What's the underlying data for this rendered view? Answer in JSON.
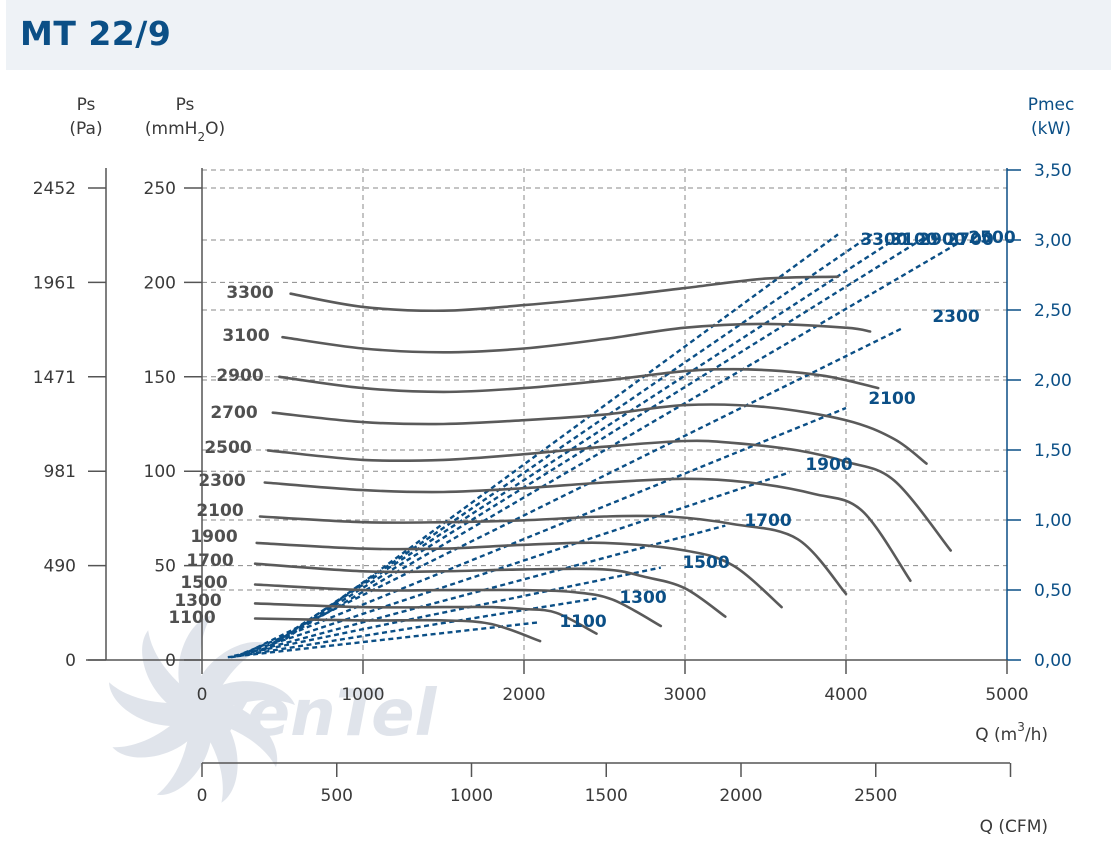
{
  "title": "MT 22/9",
  "logo_text": "venTel",
  "axes": {
    "ps_pa": {
      "label": "Ps",
      "unit": "(Pa)",
      "ticks": [
        "2452",
        "1961",
        "1471",
        "981",
        "490",
        "0"
      ]
    },
    "ps_mm": {
      "label": "Ps",
      "unit_prefix": "(mmH",
      "unit_sub": "2",
      "unit_suffix": "O)",
      "ticks": [
        "250",
        "200",
        "150",
        "100",
        "50",
        "0"
      ]
    },
    "pmec": {
      "label": "Pmec",
      "unit": "(kW)",
      "ticks": [
        "3,50",
        "3,00",
        "2,50",
        "2,00",
        "1,50",
        "1,00",
        "0,50",
        "0,00"
      ]
    },
    "q_m3h": {
      "label_prefix": "Q (m",
      "label_sup": "3",
      "label_suffix": "/h)",
      "ticks": [
        "0",
        "1000",
        "2000",
        "3000",
        "4000",
        "5000"
      ]
    },
    "q_cfm": {
      "label": "Q (CFM)",
      "ticks": [
        "0",
        "500",
        "1000",
        "1500",
        "2000",
        "2500"
      ]
    }
  },
  "chart_data": {
    "type": "line",
    "title": "MT 22/9",
    "xlabel": "Q (m3/h)",
    "ylabel": "Ps (mmH2O)",
    "y2label": "Pmec (kW)",
    "xlim": [
      0,
      5000
    ],
    "ylim": [
      0,
      250
    ],
    "y2lim": [
      0,
      3.5
    ],
    "grid": true,
    "pressure_series": [
      {
        "name": "3300",
        "x": [
          550,
          1000,
          1500,
          2000,
          2500,
          3000,
          3500,
          3950
        ],
        "y": [
          194,
          187,
          185,
          188,
          192,
          197,
          202,
          203
        ]
      },
      {
        "name": "3100",
        "x": [
          500,
          1000,
          1500,
          2000,
          2500,
          3000,
          3500,
          4000,
          4150
        ],
        "y": [
          171,
          165,
          163,
          165,
          170,
          176,
          178,
          176,
          174
        ]
      },
      {
        "name": "2900",
        "x": [
          480,
          1000,
          1500,
          2000,
          2500,
          3000,
          3300,
          3600,
          3900,
          4200
        ],
        "y": [
          150,
          144,
          142,
          144,
          148,
          153,
          154,
          153,
          150,
          144
        ]
      },
      {
        "name": "2700",
        "x": [
          440,
          1000,
          1500,
          2000,
          2500,
          3000,
          3500,
          4000,
          4300,
          4500
        ],
        "y": [
          131,
          126,
          125,
          127,
          130,
          135,
          134,
          127,
          117,
          104
        ]
      },
      {
        "name": "2500",
        "x": [
          410,
          1000,
          1500,
          2000,
          2500,
          3000,
          3300,
          3700,
          4000,
          4300,
          4650
        ],
        "y": [
          111,
          106,
          106,
          109,
          113,
          116,
          115,
          111,
          105,
          95,
          58
        ]
      },
      {
        "name": "2300",
        "x": [
          390,
          1000,
          1500,
          2000,
          2500,
          3000,
          3400,
          3800,
          4100,
          4400
        ],
        "y": [
          94,
          90,
          89,
          91,
          94,
          96,
          94,
          88,
          79,
          42
        ]
      },
      {
        "name": "2100",
        "x": [
          360,
          1000,
          1500,
          2000,
          2500,
          2900,
          3300,
          3700,
          4000
        ],
        "y": [
          76,
          73,
          73,
          74,
          76,
          76,
          72,
          64,
          35
        ]
      },
      {
        "name": "1900",
        "x": [
          340,
          1000,
          1500,
          2000,
          2500,
          3000,
          3300,
          3600
        ],
        "y": [
          62,
          59,
          59,
          61,
          62,
          58,
          50,
          28
        ]
      },
      {
        "name": "1700",
        "x": [
          330,
          1000,
          1500,
          2000,
          2500,
          2750,
          3000,
          3250
        ],
        "y": [
          51,
          47,
          47,
          48,
          48,
          44,
          38,
          23
        ]
      },
      {
        "name": "1500",
        "x": [
          330,
          1000,
          1500,
          2000,
          2300,
          2550,
          2850
        ],
        "y": [
          40,
          37,
          37,
          37,
          36,
          32,
          18
        ]
      },
      {
        "name": "1300",
        "x": [
          330,
          1000,
          1500,
          1800,
          2000,
          2200,
          2450
        ],
        "y": [
          30,
          28,
          28,
          28,
          27,
          25,
          14
        ]
      },
      {
        "name": "1100",
        "x": [
          330,
          1000,
          1500,
          1800,
          2100
        ],
        "y": [
          22,
          21,
          21,
          19,
          10
        ]
      }
    ],
    "power_series": [
      {
        "name": "1100",
        "x": [
          160,
          2100
        ],
        "y": [
          0.02,
          0.27
        ]
      },
      {
        "name": "1300",
        "x": [
          180,
          2450
        ],
        "y": [
          0.02,
          0.44
        ]
      },
      {
        "name": "1500",
        "x": [
          200,
          2850
        ],
        "y": [
          0.03,
          0.66
        ]
      },
      {
        "name": "1700",
        "x": [
          220,
          3250
        ],
        "y": [
          0.03,
          0.96
        ]
      },
      {
        "name": "1900",
        "x": [
          240,
          3650
        ],
        "y": [
          0.04,
          1.34
        ]
      },
      {
        "name": "2100",
        "x": [
          260,
          4000
        ],
        "y": [
          0.05,
          1.8
        ]
      },
      {
        "name": "2300",
        "x": [
          290,
          4350
        ],
        "y": [
          0.06,
          2.37
        ]
      },
      {
        "name": "2500",
        "x": [
          380,
          4700
        ],
        "y": [
          0.07,
          2.98
        ]
      },
      {
        "name": "2700",
        "x": [
          420,
          4520
        ],
        "y": [
          0.1,
          3.04
        ]
      },
      {
        "name": "2900",
        "x": [
          440,
          4350
        ],
        "y": [
          0.12,
          3.04
        ]
      },
      {
        "name": "3100",
        "x": [
          480,
          4160
        ],
        "y": [
          0.14,
          3.04
        ]
      },
      {
        "name": "3300",
        "x": [
          520,
          3950
        ],
        "y": [
          0.15,
          3.04
        ]
      }
    ],
    "pressure_labels": [
      "3300",
      "3100",
      "2900",
      "2700",
      "2500",
      "2300",
      "2100",
      "1900",
      "1700",
      "1500",
      "1300",
      "1100"
    ],
    "power_labels": [
      "3300",
      "3100",
      "2900",
      "2700",
      "2500",
      "2300",
      "2100",
      "1900",
      "1700",
      "1500",
      "1300",
      "1100"
    ]
  }
}
